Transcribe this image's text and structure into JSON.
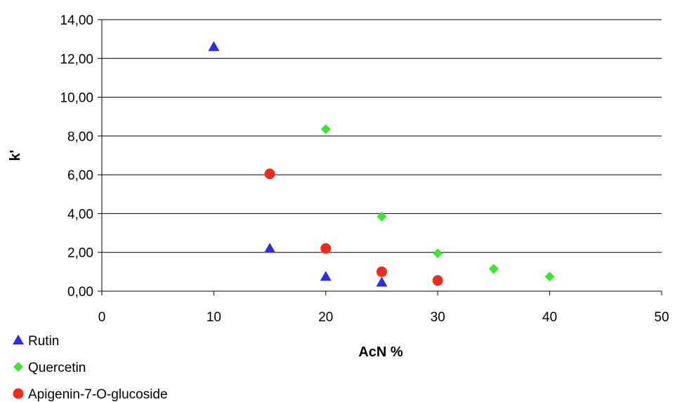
{
  "chart_data": {
    "type": "scatter",
    "title": "",
    "xlabel": "AcN %",
    "ylabel": "k'",
    "xlim": [
      0,
      50
    ],
    "ylim": [
      0,
      14
    ],
    "x_ticks": [
      "0",
      "10",
      "20",
      "30",
      "40",
      "50"
    ],
    "y_ticks": [
      "0,00",
      "2,00",
      "4,00",
      "6,00",
      "8,00",
      "10,00",
      "12,00",
      "14,00"
    ],
    "grid": "horizontal",
    "legend_position": "bottom-left",
    "series": [
      {
        "name": "Rutin",
        "marker": "triangle",
        "color": "#2b2bf0",
        "points": [
          [
            10,
            12.6
          ],
          [
            15,
            2.2
          ],
          [
            20,
            0.75
          ],
          [
            25,
            0.45
          ]
        ]
      },
      {
        "name": "Quercetin",
        "marker": "diamond",
        "color": "#3de62e",
        "points": [
          [
            20,
            8.35
          ],
          [
            25,
            3.85
          ],
          [
            30,
            1.95
          ],
          [
            35,
            1.15
          ],
          [
            40,
            0.75
          ]
        ]
      },
      {
        "name": "Apigenin-7-O-glucoside",
        "marker": "circle",
        "color": "#f02b1b",
        "points": [
          [
            15,
            6.05
          ],
          [
            20,
            2.2
          ],
          [
            25,
            1.0
          ],
          [
            30,
            0.55
          ]
        ]
      }
    ]
  }
}
